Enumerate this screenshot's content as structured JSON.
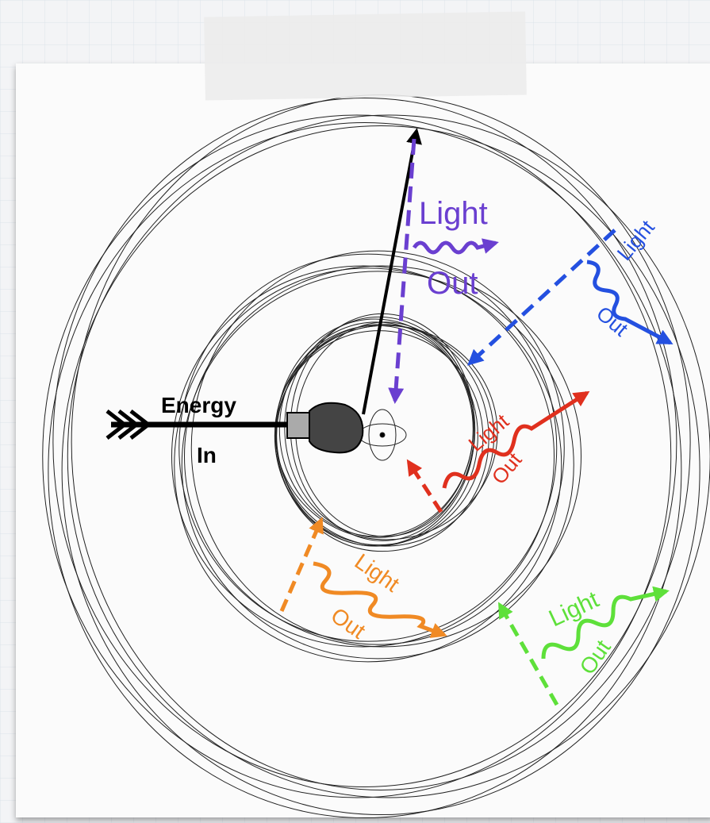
{
  "energy": {
    "line1": "Energy",
    "line2": "In"
  },
  "emissions": [
    {
      "light": "Light",
      "out": "Out"
    },
    {
      "light": "Light",
      "out": "Out"
    },
    {
      "light": "Light",
      "out": "Out"
    },
    {
      "light": "Light",
      "out": "Out"
    },
    {
      "light": "Light",
      "out": "Out"
    }
  ]
}
